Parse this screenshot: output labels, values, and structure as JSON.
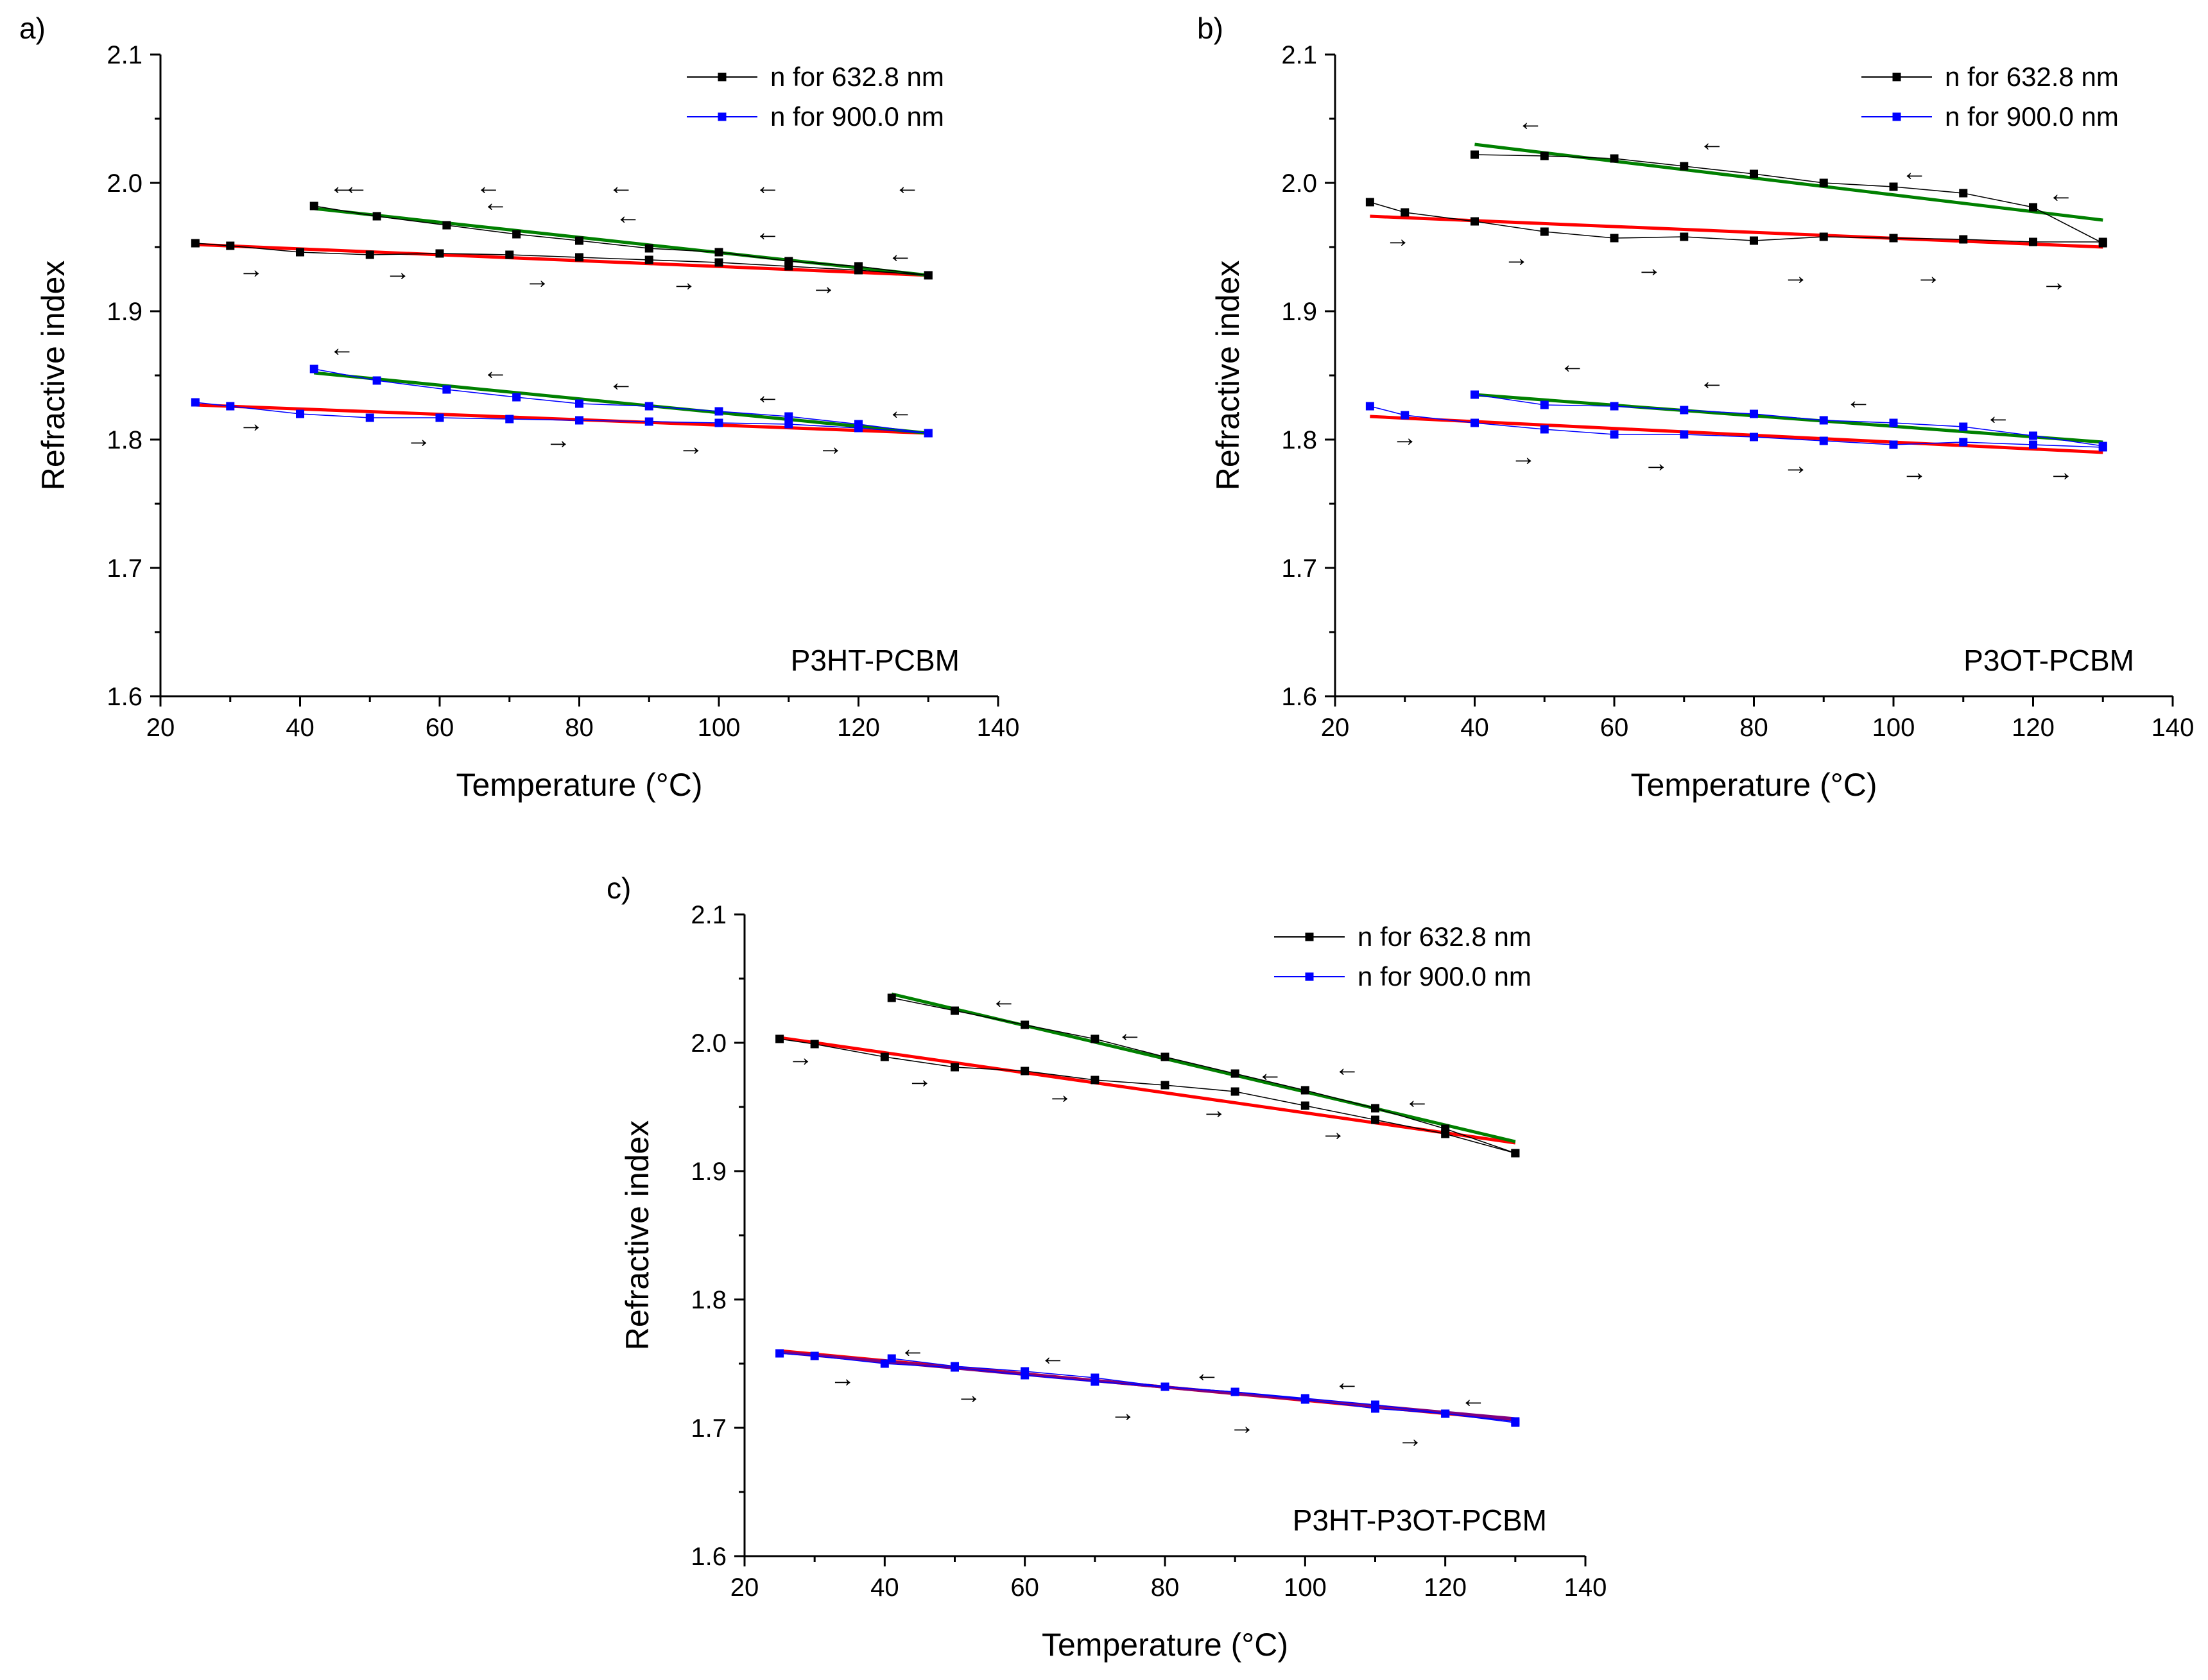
{
  "chart_data": [
    {
      "panel_label": "a)",
      "type": "line",
      "xlabel": "Temperature (°C)",
      "ylabel": "Refractive index",
      "xlim": [
        20,
        140
      ],
      "ylim": [
        1.6,
        2.1
      ],
      "xticks": [
        20,
        40,
        60,
        80,
        100,
        120,
        140
      ],
      "yticks": [
        1.6,
        1.7,
        1.8,
        1.9,
        2.0,
        2.1
      ],
      "xtick_labels": [
        "20",
        "40",
        "60",
        "80",
        "100",
        "120",
        "140"
      ],
      "ytick_labels": [
        "1.6",
        "1.7",
        "1.8",
        "1.9",
        "2.0",
        "2.1"
      ],
      "annotation": "P3HT-PCBM",
      "legend": [
        {
          "label": "n for 632.8 nm",
          "color": "#000000"
        },
        {
          "label": "n for 900.0 nm",
          "color": "#0000ff"
        }
      ],
      "series": [
        {
          "name": "n for 632.8 nm (heating)",
          "color": "#000000",
          "x": [
            25,
            30,
            40,
            50,
            60,
            70,
            80,
            90,
            100,
            110,
            120,
            130
          ],
          "y": [
            1.953,
            1.951,
            1.946,
            1.944,
            1.945,
            1.944,
            1.942,
            1.94,
            1.938,
            1.935,
            1.932,
            1.928
          ]
        },
        {
          "name": "n for 632.8 nm (cooling)",
          "color": "#000000",
          "x": [
            42,
            51,
            61,
            71,
            80,
            90,
            100,
            110,
            120,
            130
          ],
          "y": [
            1.982,
            1.974,
            1.967,
            1.96,
            1.955,
            1.949,
            1.946,
            1.939,
            1.935,
            1.928
          ]
        },
        {
          "name": "n for 900.0 nm (heating)",
          "color": "#0000ff",
          "x": [
            25,
            30,
            40,
            50,
            60,
            70,
            80,
            90,
            100,
            110,
            120,
            130
          ],
          "y": [
            1.829,
            1.826,
            1.82,
            1.817,
            1.817,
            1.816,
            1.815,
            1.814,
            1.813,
            1.812,
            1.809,
            1.805
          ]
        },
        {
          "name": "n for 900.0 nm (cooling)",
          "color": "#0000ff",
          "x": [
            42,
            51,
            61,
            71,
            80,
            90,
            100,
            110,
            120,
            130
          ],
          "y": [
            1.855,
            1.846,
            1.839,
            1.833,
            1.828,
            1.826,
            1.822,
            1.818,
            1.812,
            1.805
          ]
        }
      ],
      "fits": [
        {
          "color": "#ff0000",
          "x": [
            25,
            130
          ],
          "y": [
            1.952,
            1.928
          ]
        },
        {
          "color": "#008000",
          "x": [
            42,
            130
          ],
          "y": [
            1.98,
            1.928
          ]
        },
        {
          "color": "#ff0000",
          "x": [
            25,
            130
          ],
          "y": [
            1.827,
            1.805
          ]
        },
        {
          "color": "#008000",
          "x": [
            42,
            130
          ],
          "y": [
            1.852,
            1.805
          ]
        }
      ],
      "arrows": [
        {
          "dir": "left",
          "x": [
            48,
            67,
            86,
            107,
            127
          ],
          "y": 1.997
        },
        {
          "dir": "left",
          "x": [
            46,
            68,
            87,
            107,
            126
          ],
          "y": [
            1.997,
            1.984,
            1.974,
            1.961,
            1.944
          ]
        },
        {
          "dir": "right",
          "x": [
            33,
            54,
            74,
            95,
            115
          ],
          "y": [
            1.932,
            1.93,
            1.924,
            1.922,
            1.919
          ]
        },
        {
          "dir": "left",
          "x": [
            46,
            68,
            86,
            107,
            126
          ],
          "y": [
            1.871,
            1.853,
            1.844,
            1.834,
            1.822
          ]
        },
        {
          "dir": "right",
          "x": [
            33,
            57,
            77,
            96,
            116
          ],
          "y": [
            1.812,
            1.8,
            1.799,
            1.794,
            1.794
          ]
        }
      ]
    },
    {
      "panel_label": "b)",
      "type": "line",
      "xlabel": "Temperature (°C)",
      "ylabel": "Refractive index",
      "xlim": [
        20,
        140
      ],
      "ylim": [
        1.6,
        2.1
      ],
      "xticks": [
        20,
        40,
        60,
        80,
        100,
        120,
        140
      ],
      "yticks": [
        1.6,
        1.7,
        1.8,
        1.9,
        2.0,
        2.1
      ],
      "xtick_labels": [
        "20",
        "40",
        "60",
        "80",
        "100",
        "120",
        "140"
      ],
      "ytick_labels": [
        "1.6",
        "1.7",
        "1.8",
        "1.9",
        "2.0",
        "2.1"
      ],
      "annotation": "P3OT-PCBM",
      "legend": [
        {
          "label": "n for 632.8 nm",
          "color": "#000000"
        },
        {
          "label": "n for 900.0 nm",
          "color": "#0000ff"
        }
      ],
      "series": [
        {
          "name": "n for 632.8 nm (heating)",
          "color": "#000000",
          "x": [
            25,
            30,
            40,
            50,
            60,
            70,
            80,
            90,
            100,
            110,
            120,
            130
          ],
          "y": [
            1.985,
            1.977,
            1.97,
            1.962,
            1.957,
            1.958,
            1.955,
            1.958,
            1.957,
            1.956,
            1.954,
            1.954
          ]
        },
        {
          "name": "n for 632.8 nm (cooling)",
          "color": "#000000",
          "x": [
            40,
            50,
            60,
            70,
            80,
            90,
            100,
            110,
            120,
            130
          ],
          "y": [
            2.022,
            2.021,
            2.019,
            2.013,
            2.007,
            2.0,
            1.997,
            1.992,
            1.981,
            1.953
          ]
        },
        {
          "name": "n for 900.0 nm (heating)",
          "color": "#0000ff",
          "x": [
            25,
            30,
            40,
            50,
            60,
            70,
            80,
            90,
            100,
            110,
            120,
            130
          ],
          "y": [
            1.826,
            1.819,
            1.813,
            1.808,
            1.804,
            1.804,
            1.802,
            1.799,
            1.796,
            1.798,
            1.796,
            1.794
          ]
        },
        {
          "name": "n for 900.0 nm (cooling)",
          "color": "#0000ff",
          "x": [
            40,
            50,
            60,
            70,
            80,
            90,
            100,
            110,
            120,
            130
          ],
          "y": [
            1.835,
            1.827,
            1.826,
            1.823,
            1.82,
            1.815,
            1.813,
            1.81,
            1.803,
            1.795
          ]
        }
      ],
      "fits": [
        {
          "color": "#ff0000",
          "x": [
            25,
            130
          ],
          "y": [
            1.974,
            1.95
          ]
        },
        {
          "color": "#008000",
          "x": [
            40,
            130
          ],
          "y": [
            2.03,
            1.971
          ]
        },
        {
          "color": "#ff0000",
          "x": [
            25,
            130
          ],
          "y": [
            1.818,
            1.79
          ]
        },
        {
          "color": "#008000",
          "x": [
            40,
            130
          ],
          "y": [
            1.835,
            1.798
          ]
        }
      ],
      "arrows": [
        {
          "dir": "left",
          "x": [
            48,
            74,
            103,
            124
          ],
          "y": [
            2.047,
            2.031,
            2.008,
            1.991
          ]
        },
        {
          "dir": "right",
          "x": [
            29,
            46,
            65,
            86,
            105,
            123
          ],
          "y": [
            1.956,
            1.941,
            1.933,
            1.927,
            1.927,
            1.922
          ]
        },
        {
          "dir": "left",
          "x": [
            54,
            74,
            95,
            115
          ],
          "y": [
            1.858,
            1.845,
            1.83,
            1.818
          ]
        },
        {
          "dir": "right",
          "x": [
            30,
            47,
            66,
            86,
            103,
            124
          ],
          "y": [
            1.801,
            1.786,
            1.781,
            1.779,
            1.774,
            1.774
          ]
        }
      ]
    },
    {
      "panel_label": "c)",
      "type": "line",
      "xlabel": "Temperature (°C)",
      "ylabel": "Refractive index",
      "xlim": [
        20,
        140
      ],
      "ylim": [
        1.6,
        2.1
      ],
      "xticks": [
        20,
        40,
        60,
        80,
        100,
        120,
        140
      ],
      "yticks": [
        1.6,
        1.7,
        1.8,
        1.9,
        2.0,
        2.1
      ],
      "xtick_labels": [
        "20",
        "40",
        "60",
        "80",
        "100",
        "120",
        "140"
      ],
      "ytick_labels": [
        "1.6",
        "1.7",
        "1.8",
        "1.9",
        "2.0",
        "2.1"
      ],
      "annotation": "P3HT-P3OT-PCBM",
      "legend": [
        {
          "label": "n for 632.8 nm",
          "color": "#000000"
        },
        {
          "label": "n for 900.0 nm",
          "color": "#0000ff"
        }
      ],
      "series": [
        {
          "name": "n for 632.8 nm (heating)",
          "color": "#000000",
          "x": [
            25,
            30,
            40,
            50,
            60,
            70,
            80,
            90,
            100,
            110,
            120,
            130
          ],
          "y": [
            2.003,
            1.999,
            1.989,
            1.981,
            1.978,
            1.971,
            1.967,
            1.962,
            1.951,
            1.94,
            1.929,
            1.914
          ]
        },
        {
          "name": "n for 632.8 nm (cooling)",
          "color": "#000000",
          "x": [
            41,
            50,
            60,
            70,
            80,
            90,
            100,
            110,
            120,
            130
          ],
          "y": [
            2.035,
            2.025,
            2.014,
            2.003,
            1.989,
            1.976,
            1.963,
            1.949,
            1.933,
            1.914
          ]
        },
        {
          "name": "n for 900.0 nm (heating)",
          "color": "#0000ff",
          "x": [
            25,
            30,
            40,
            50,
            60,
            70,
            80,
            90,
            100,
            110,
            120,
            130
          ],
          "y": [
            1.758,
            1.756,
            1.75,
            1.747,
            1.741,
            1.736,
            1.732,
            1.728,
            1.722,
            1.715,
            1.711,
            1.704
          ]
        },
        {
          "name": "n for 900.0 nm (cooling)",
          "color": "#0000ff",
          "x": [
            41,
            50,
            60,
            70,
            80,
            90,
            100,
            110,
            120,
            130
          ],
          "y": [
            1.754,
            1.748,
            1.744,
            1.739,
            1.732,
            1.728,
            1.723,
            1.718,
            1.711,
            1.705
          ]
        }
      ],
      "fits": [
        {
          "color": "#ff0000",
          "x": [
            25,
            130
          ],
          "y": [
            2.004,
            1.922
          ]
        },
        {
          "color": "#008000",
          "x": [
            41,
            130
          ],
          "y": [
            2.038,
            1.923
          ]
        },
        {
          "color": "#ff0000",
          "x": [
            25,
            130
          ],
          "y": [
            1.76,
            1.706
          ]
        },
        {
          "color": "#800080",
          "x": [
            25,
            130
          ],
          "y": [
            1.759,
            1.707
          ]
        }
      ],
      "arrows": [
        {
          "dir": "left",
          "x": [
            57,
            75,
            106,
            95,
            116
          ],
          "y": [
            2.033,
            2.007,
            1.98,
            1.976,
            1.955
          ]
        },
        {
          "dir": "right",
          "x": [
            28,
            45,
            65,
            87,
            104
          ],
          "y": [
            1.988,
            1.971,
            1.959,
            1.947,
            1.93
          ]
        },
        {
          "dir": "left",
          "x": [
            44,
            64,
            86,
            106,
            124
          ],
          "y": [
            1.761,
            1.755,
            1.742,
            1.735,
            1.722
          ]
        },
        {
          "dir": "right",
          "x": [
            34,
            52,
            74,
            91,
            115
          ],
          "y": [
            1.738,
            1.725,
            1.711,
            1.701,
            1.691
          ]
        }
      ]
    }
  ]
}
